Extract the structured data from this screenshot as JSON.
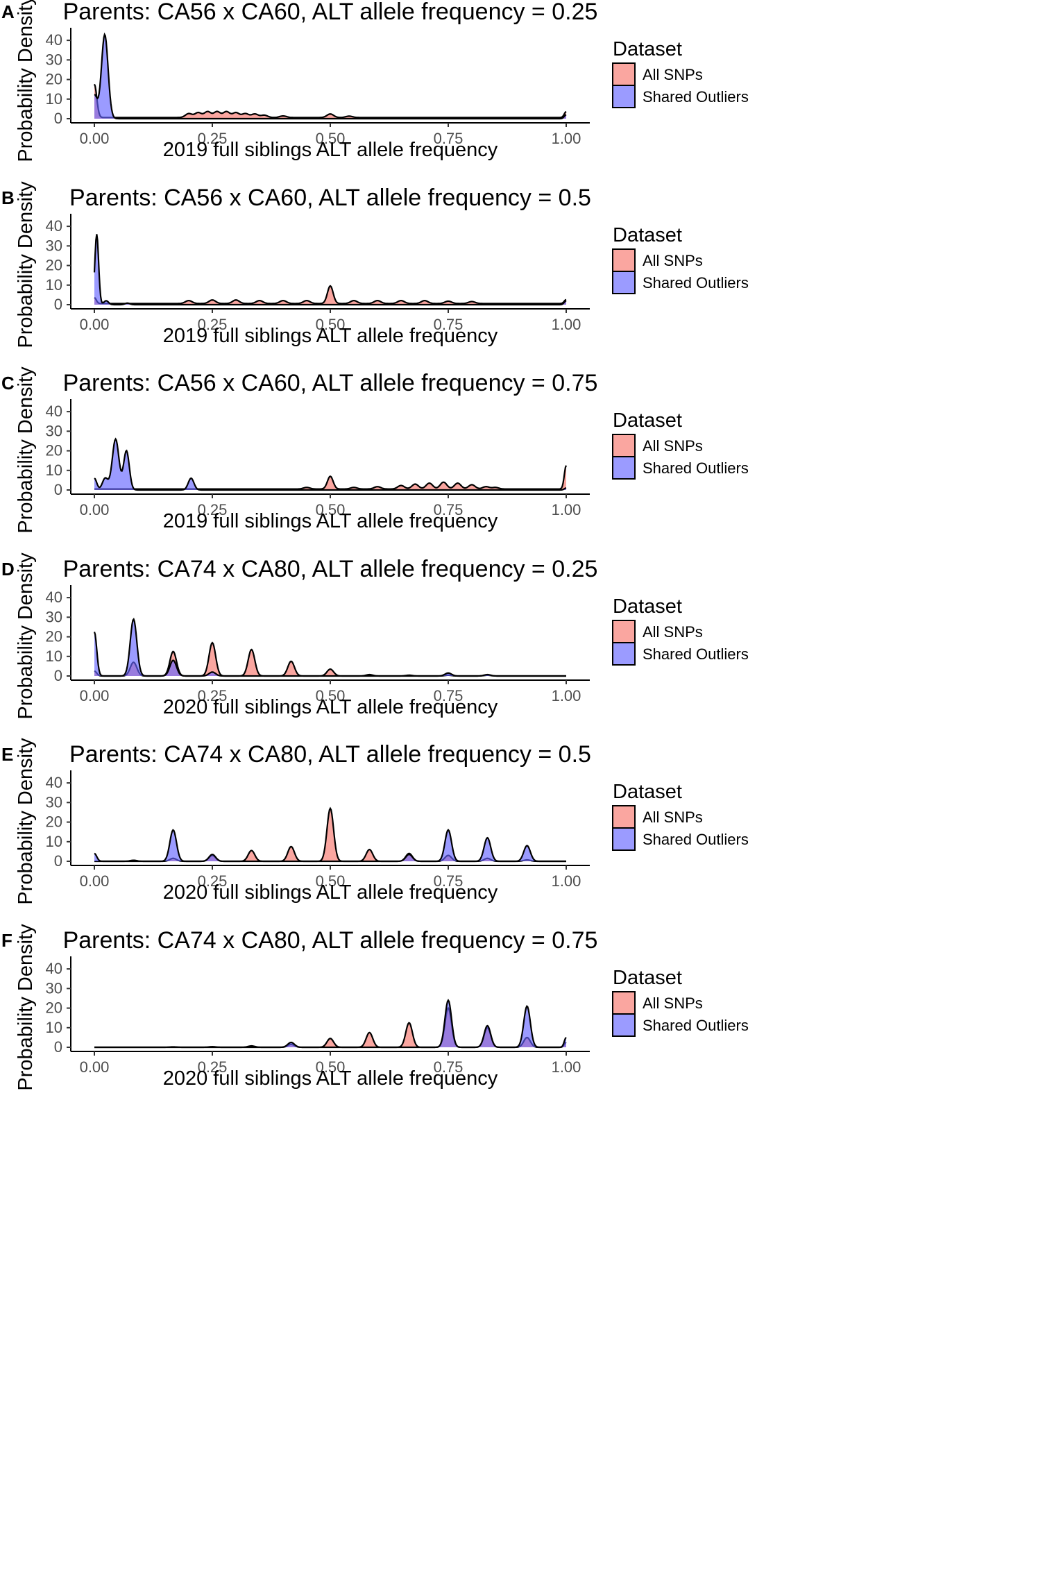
{
  "figure": {
    "legend_title": "Dataset",
    "series_names": [
      "All SNPs",
      "Shared Outliers"
    ],
    "series_colors": [
      "#F8766D",
      "#6666FF"
    ],
    "overlap_color": "#7B2F9E"
  },
  "chart_data": [
    {
      "type": "area",
      "panel": "A",
      "title": "Parents: CA56 x CA60, ALT allele frequency = 0.25",
      "xlabel": "2019 full siblings ALT allele frequency",
      "ylabel": "Probability Density",
      "xlim": [
        0,
        1
      ],
      "ylim": [
        0,
        45
      ],
      "xticks": [
        "0.00",
        "0.25",
        "0.50",
        "0.75",
        "1.00"
      ],
      "yticks": [
        "0",
        "10",
        "20",
        "30",
        "40"
      ],
      "series": [
        {
          "name": "All SNPs",
          "baseline": 0.6,
          "peaks": [
            [
              0.0,
              17,
              0.005
            ],
            [
              0.2,
              2,
              0.007
            ],
            [
              0.22,
              2.5,
              0.007
            ],
            [
              0.24,
              3,
              0.007
            ],
            [
              0.26,
              3,
              0.007
            ],
            [
              0.28,
              3,
              0.007
            ],
            [
              0.3,
              2.5,
              0.007
            ],
            [
              0.32,
              2,
              0.007
            ],
            [
              0.34,
              1.8,
              0.007
            ],
            [
              0.36,
              1.2,
              0.007
            ],
            [
              0.4,
              0.8,
              0.007
            ],
            [
              0.5,
              1.8,
              0.007
            ],
            [
              0.54,
              0.7,
              0.007
            ],
            [
              1.0,
              3,
              0.004
            ]
          ]
        },
        {
          "name": "Shared Outliers",
          "baseline": 0,
          "peaks": [
            [
              0.0,
              12,
              0.006
            ],
            [
              0.022,
              43,
              0.007
            ],
            [
              1.0,
              2,
              0.004
            ]
          ]
        }
      ]
    },
    {
      "type": "area",
      "panel": "B",
      "title": "Parents: CA56 x CA60, ALT allele frequency = 0.5",
      "xlabel": "2019 full siblings ALT allele frequency",
      "ylabel": "Probability Density",
      "xlim": [
        0,
        1
      ],
      "ylim": [
        0,
        45
      ],
      "xticks": [
        "0.00",
        "0.25",
        "0.50",
        "0.75",
        "1.00"
      ],
      "yticks": [
        "0",
        "10",
        "20",
        "30",
        "40"
      ],
      "series": [
        {
          "name": "All SNPs",
          "baseline": 0.6,
          "peaks": [
            [
              0.0,
              3,
              0.004
            ],
            [
              0.2,
              1.5,
              0.007
            ],
            [
              0.25,
              1.8,
              0.007
            ],
            [
              0.3,
              1.8,
              0.007
            ],
            [
              0.35,
              1.5,
              0.007
            ],
            [
              0.4,
              1.5,
              0.007
            ],
            [
              0.45,
              1.5,
              0.007
            ],
            [
              0.5,
              9,
              0.006
            ],
            [
              0.55,
              1.5,
              0.007
            ],
            [
              0.6,
              1.5,
              0.007
            ],
            [
              0.65,
              1.5,
              0.007
            ],
            [
              0.7,
              1.5,
              0.007
            ],
            [
              0.75,
              1.2,
              0.007
            ],
            [
              0.8,
              1,
              0.007
            ],
            [
              1.0,
              2,
              0.004
            ]
          ]
        },
        {
          "name": "Shared Outliers",
          "baseline": 0,
          "peaks": [
            [
              0.005,
              36,
              0.004
            ],
            [
              0.025,
              2,
              0.005
            ],
            [
              0.07,
              0.8,
              0.005
            ],
            [
              1.0,
              2,
              0.004
            ]
          ]
        }
      ]
    },
    {
      "type": "area",
      "panel": "C",
      "title": "Parents: CA56 x CA60, ALT allele frequency = 0.75",
      "xlabel": "2019 full siblings ALT allele frequency",
      "ylabel": "Probability Density",
      "xlim": [
        0,
        1
      ],
      "ylim": [
        0,
        45
      ],
      "xticks": [
        "0.00",
        "0.25",
        "0.50",
        "0.75",
        "1.00"
      ],
      "yticks": [
        "0",
        "10",
        "20",
        "30",
        "40"
      ],
      "series": [
        {
          "name": "All SNPs",
          "baseline": 0.5,
          "peaks": [
            [
              0.45,
              0.8,
              0.007
            ],
            [
              0.5,
              6.5,
              0.006
            ],
            [
              0.55,
              0.8,
              0.007
            ],
            [
              0.6,
              1.2,
              0.007
            ],
            [
              0.65,
              1.8,
              0.007
            ],
            [
              0.68,
              2.5,
              0.007
            ],
            [
              0.71,
              3,
              0.007
            ],
            [
              0.74,
              3.5,
              0.007
            ],
            [
              0.77,
              3,
              0.007
            ],
            [
              0.8,
              2.2,
              0.007
            ],
            [
              0.83,
              1.2,
              0.007
            ],
            [
              0.85,
              0.8,
              0.007
            ],
            [
              1.0,
              12,
              0.004
            ]
          ]
        },
        {
          "name": "Shared Outliers",
          "baseline": 0,
          "peaks": [
            [
              0.0,
              6,
              0.005
            ],
            [
              0.023,
              6,
              0.006
            ],
            [
              0.045,
              26,
              0.007
            ],
            [
              0.068,
              20,
              0.006
            ],
            [
              0.205,
              6,
              0.006
            ],
            [
              1.0,
              1,
              0.004
            ]
          ]
        }
      ]
    },
    {
      "type": "area",
      "panel": "D",
      "title": "Parents: CA74 x CA80, ALT allele frequency = 0.25",
      "xlabel": "2020 full siblings ALT allele frequency",
      "ylabel": "Probability Density",
      "xlim": [
        0,
        1
      ],
      "ylim": [
        0,
        45
      ],
      "xticks": [
        "0.00",
        "0.25",
        "0.50",
        "0.75",
        "1.00"
      ],
      "yticks": [
        "0",
        "10",
        "20",
        "30",
        "40"
      ],
      "series": [
        {
          "name": "All SNPs",
          "baseline": 0,
          "peaks": [
            [
              0.0,
              2.5,
              0.005
            ],
            [
              0.083,
              7,
              0.007
            ],
            [
              0.167,
              12.5,
              0.007
            ],
            [
              0.25,
              17,
              0.007
            ],
            [
              0.333,
              13.5,
              0.007
            ],
            [
              0.417,
              7.5,
              0.007
            ],
            [
              0.5,
              3.5,
              0.007
            ],
            [
              0.583,
              0.7,
              0.007
            ],
            [
              0.667,
              0.4,
              0.007
            ],
            [
              0.75,
              0.4,
              0.007
            ],
            [
              0.833,
              0.4,
              0.007
            ]
          ]
        },
        {
          "name": "Shared Outliers",
          "baseline": 0,
          "peaks": [
            [
              0.0,
              22.5,
              0.005
            ],
            [
              0.083,
              29,
              0.007
            ],
            [
              0.167,
              8,
              0.007
            ],
            [
              0.25,
              2,
              0.007
            ],
            [
              0.75,
              1.5,
              0.007
            ],
            [
              0.833,
              0.7,
              0.007
            ]
          ]
        }
      ]
    },
    {
      "type": "area",
      "panel": "E",
      "title": "Parents: CA74 x CA80, ALT allele frequency = 0.5",
      "xlabel": "2020 full siblings ALT allele frequency",
      "ylabel": "Probability Density",
      "xlim": [
        0,
        1
      ],
      "ylim": [
        0,
        45
      ],
      "xticks": [
        "0.00",
        "0.25",
        "0.50",
        "0.75",
        "1.00"
      ],
      "yticks": [
        "0",
        "10",
        "20",
        "30",
        "40"
      ],
      "series": [
        {
          "name": "All SNPs",
          "baseline": 0,
          "peaks": [
            [
              0.083,
              0.5,
              0.007
            ],
            [
              0.167,
              1.5,
              0.007
            ],
            [
              0.25,
              3,
              0.007
            ],
            [
              0.333,
              5.5,
              0.007
            ],
            [
              0.417,
              7.5,
              0.007
            ],
            [
              0.5,
              27,
              0.007
            ],
            [
              0.583,
              6,
              0.007
            ],
            [
              0.667,
              4,
              0.007
            ],
            [
              0.75,
              3,
              0.007
            ],
            [
              0.833,
              1.5,
              0.007
            ],
            [
              0.917,
              0.7,
              0.007
            ]
          ]
        },
        {
          "name": "Shared Outliers",
          "baseline": 0,
          "peaks": [
            [
              0.0,
              4,
              0.005
            ],
            [
              0.167,
              16,
              0.007
            ],
            [
              0.25,
              3.5,
              0.007
            ],
            [
              0.667,
              3.5,
              0.007
            ],
            [
              0.75,
              16,
              0.007
            ],
            [
              0.833,
              12,
              0.007
            ],
            [
              0.917,
              8,
              0.007
            ]
          ]
        }
      ]
    },
    {
      "type": "area",
      "panel": "F",
      "title": "Parents: CA74 x CA80, ALT allele frequency = 0.75",
      "xlabel": "2020 full siblings ALT allele frequency",
      "ylabel": "Probability Density",
      "xlim": [
        0,
        1
      ],
      "ylim": [
        0,
        45
      ],
      "xticks": [
        "0.00",
        "0.25",
        "0.50",
        "0.75",
        "1.00"
      ],
      "yticks": [
        "0",
        "10",
        "20",
        "30",
        "40"
      ],
      "series": [
        {
          "name": "All SNPs",
          "baseline": 0,
          "peaks": [
            [
              0.167,
              0.2,
              0.007
            ],
            [
              0.25,
              0.3,
              0.007
            ],
            [
              0.333,
              0.7,
              0.007
            ],
            [
              0.417,
              1.5,
              0.007
            ],
            [
              0.5,
              4.5,
              0.007
            ],
            [
              0.583,
              7.5,
              0.007
            ],
            [
              0.667,
              12.5,
              0.007
            ],
            [
              0.75,
              20,
              0.007
            ],
            [
              0.833,
              10,
              0.007
            ],
            [
              0.917,
              5,
              0.007
            ],
            [
              1.0,
              2.5,
              0.004
            ]
          ]
        },
        {
          "name": "Shared Outliers",
          "baseline": 0,
          "peaks": [
            [
              0.417,
              2.5,
              0.007
            ],
            [
              0.75,
              24,
              0.007
            ],
            [
              0.833,
              11,
              0.007
            ],
            [
              0.917,
              21,
              0.007
            ],
            [
              1.0,
              5,
              0.004
            ]
          ]
        }
      ]
    }
  ]
}
